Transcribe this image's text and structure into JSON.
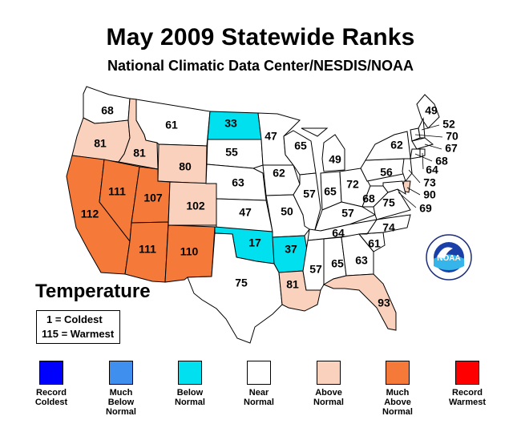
{
  "title": "May 2009 Statewide Ranks",
  "subtitle": "National Climatic Data Center/NESDIS/NOAA",
  "parameter": "Temperature",
  "key": {
    "line1": "1 = Coldest",
    "line2": "115 = Warmest"
  },
  "logo": {
    "text": "NOAA",
    "ring_text": "NATIONAL OCEANIC AND ATMOSPHERIC ADMINISTRATION · U.S. DEPARTMENT OF COMMERCE"
  },
  "legend": [
    {
      "label": "Record\nColdest",
      "color": "#0000ff"
    },
    {
      "label": "Much\nBelow\nNormal",
      "color": "#3f8fef"
    },
    {
      "label": "Below\nNormal",
      "color": "#00e0ef"
    },
    {
      "label": "Near\nNormal",
      "color": "#ffffff"
    },
    {
      "label": "Above\nNormal",
      "color": "#f9d1bc"
    },
    {
      "label": "Much\nAbove\nNormal",
      "color": "#f57a3a"
    },
    {
      "label": "Record\nWarmest",
      "color": "#ff0000"
    }
  ],
  "category_colors": {
    "below": "#00e0ef",
    "near": "#ffffff",
    "above": "#f9d1bc",
    "much_above": "#f57a3a"
  },
  "states": [
    {
      "name": "WA",
      "rank": "68",
      "category": "near"
    },
    {
      "name": "OR",
      "rank": "81",
      "category": "above"
    },
    {
      "name": "CA",
      "rank": "112",
      "category": "much_above"
    },
    {
      "name": "ID",
      "rank": "81",
      "category": "above"
    },
    {
      "name": "NV",
      "rank": "111",
      "category": "much_above"
    },
    {
      "name": "MT",
      "rank": "61",
      "category": "near"
    },
    {
      "name": "WY",
      "rank": "80",
      "category": "above"
    },
    {
      "name": "UT",
      "rank": "107",
      "category": "much_above"
    },
    {
      "name": "AZ",
      "rank": "111",
      "category": "much_above"
    },
    {
      "name": "CO",
      "rank": "102",
      "category": "above"
    },
    {
      "name": "NM",
      "rank": "110",
      "category": "much_above"
    },
    {
      "name": "ND",
      "rank": "33",
      "category": "below"
    },
    {
      "name": "SD",
      "rank": "55",
      "category": "near"
    },
    {
      "name": "NE",
      "rank": "63",
      "category": "near"
    },
    {
      "name": "KS",
      "rank": "47",
      "category": "near"
    },
    {
      "name": "OK",
      "rank": "17",
      "category": "below"
    },
    {
      "name": "TX",
      "rank": "75",
      "category": "near"
    },
    {
      "name": "MN",
      "rank": "47",
      "category": "near"
    },
    {
      "name": "IA",
      "rank": "62",
      "category": "near"
    },
    {
      "name": "MO",
      "rank": "50",
      "category": "near"
    },
    {
      "name": "AR",
      "rank": "37",
      "category": "below"
    },
    {
      "name": "LA",
      "rank": "81",
      "category": "above"
    },
    {
      "name": "WI",
      "rank": "65",
      "category": "near"
    },
    {
      "name": "IL",
      "rank": "57",
      "category": "near"
    },
    {
      "name": "MI",
      "rank": "49",
      "category": "near"
    },
    {
      "name": "IN",
      "rank": "65",
      "category": "near"
    },
    {
      "name": "OH",
      "rank": "72",
      "category": "near"
    },
    {
      "name": "KY",
      "rank": "57",
      "category": "near"
    },
    {
      "name": "TN",
      "rank": "64",
      "category": "near"
    },
    {
      "name": "MS",
      "rank": "57",
      "category": "near"
    },
    {
      "name": "AL",
      "rank": "65",
      "category": "near"
    },
    {
      "name": "GA",
      "rank": "63",
      "category": "near"
    },
    {
      "name": "FL",
      "rank": "93",
      "category": "above"
    },
    {
      "name": "SC",
      "rank": "61",
      "category": "near"
    },
    {
      "name": "NC",
      "rank": "74",
      "category": "near"
    },
    {
      "name": "VA",
      "rank": "75",
      "category": "near"
    },
    {
      "name": "WV",
      "rank": "68",
      "category": "near"
    },
    {
      "name": "PA",
      "rank": "56",
      "category": "near"
    },
    {
      "name": "NY",
      "rank": "62",
      "category": "near"
    },
    {
      "name": "ME",
      "rank": "49",
      "category": "near"
    },
    {
      "name": "NH",
      "rank": "52",
      "category": "near"
    },
    {
      "name": "VT",
      "rank": "70",
      "category": "near"
    },
    {
      "name": "MA",
      "rank": "67",
      "category": "near"
    },
    {
      "name": "CT",
      "rank": "68",
      "category": "near"
    },
    {
      "name": "RI",
      "rank": "64",
      "category": "near"
    },
    {
      "name": "NJ",
      "rank": "73",
      "category": "near"
    },
    {
      "name": "DE",
      "rank": "90",
      "category": "above"
    },
    {
      "name": "MD",
      "rank": "69",
      "category": "near"
    }
  ]
}
